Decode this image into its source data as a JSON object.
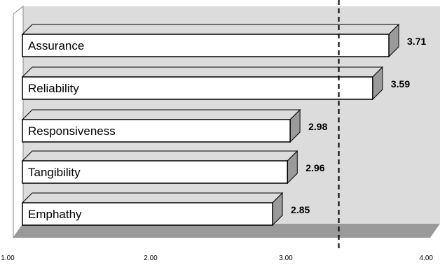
{
  "chart_data": {
    "type": "bar",
    "orientation": "horizontal",
    "style": "3d",
    "categories": [
      "Assurance",
      "Reliability",
      "Responsiveness",
      "Tangibility",
      "Emphathy"
    ],
    "values": [
      3.71,
      3.59,
      2.98,
      2.96,
      2.85
    ],
    "value_labels": [
      "3.71",
      "3.59",
      "2.98",
      "2.96",
      "2.85"
    ],
    "xlim": [
      1.0,
      4.0
    ],
    "x_ticks": [
      1.0,
      2.0,
      3.0,
      4.0
    ],
    "x_tick_labels": [
      "1.00",
      "2.00",
      "3.00",
      "4.00"
    ],
    "reference_line": {
      "value": 3.34,
      "style": "dashed"
    },
    "grid": false,
    "legend": "none",
    "title": "",
    "xlabel": "",
    "ylabel": "",
    "colors": {
      "bar_front": "#ffffff",
      "bar_top": "#dcdcdc",
      "bar_side": "#9a9a9a",
      "outline": "#000000",
      "back_wall": "#dcdcdc",
      "floor": "#9a9a9a",
      "side_wall": "#ffffff",
      "reference_line": "#000000"
    }
  }
}
